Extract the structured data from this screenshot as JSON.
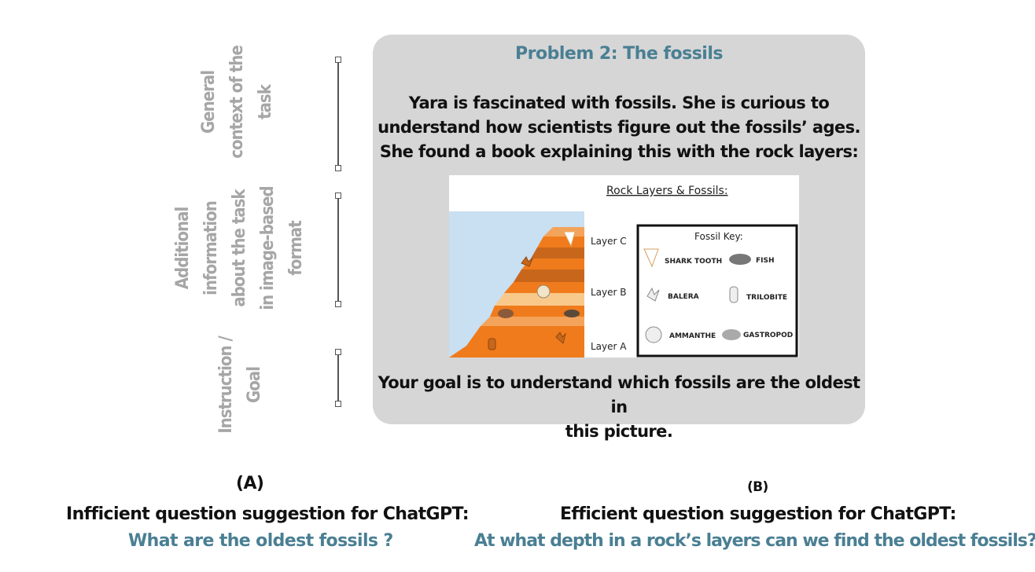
{
  "side_labels": {
    "context": [
      "General",
      "context of the",
      "task"
    ],
    "image_info": [
      "Additional",
      "information",
      "about the task",
      "in image-based",
      "format"
    ],
    "goal": [
      "Instruction /",
      "Goal"
    ]
  },
  "card": {
    "title": "Problem 2: The fossils",
    "intro": [
      "Yara is fascinated with fossils. She is curious to",
      "understand how scientists figure out the fossils’ ages.",
      "She found a book explaining this with the rock layers:"
    ],
    "goal": [
      "Your goal is to understand which fossils are the oldest in",
      "this picture."
    ]
  },
  "figure": {
    "title": "Rock Layers & Fossils:",
    "layers": [
      "Layer C",
      "Layer B",
      "Layer A"
    ],
    "key_title": "Fossil Key:",
    "key_items": [
      "SHARK TOOTH",
      "FISH",
      "BALERA",
      "TRILOBITE",
      "AMMANTHE",
      "GASTROPOD"
    ]
  },
  "panel_a": {
    "tag": "(A)",
    "heading": "Infficient question suggestion for ChatGPT:",
    "question": "What are the oldest fossils ?"
  },
  "panel_b": {
    "tag": "(B)",
    "heading": "Efficient question suggestion for ChatGPT:",
    "question": "At what depth in a rock’s layers can we find the oldest fossils?"
  },
  "colors": {
    "accent": "#4a7f93",
    "label_gray": "#a6a6a6",
    "card_bg": "#d6d6d6"
  }
}
